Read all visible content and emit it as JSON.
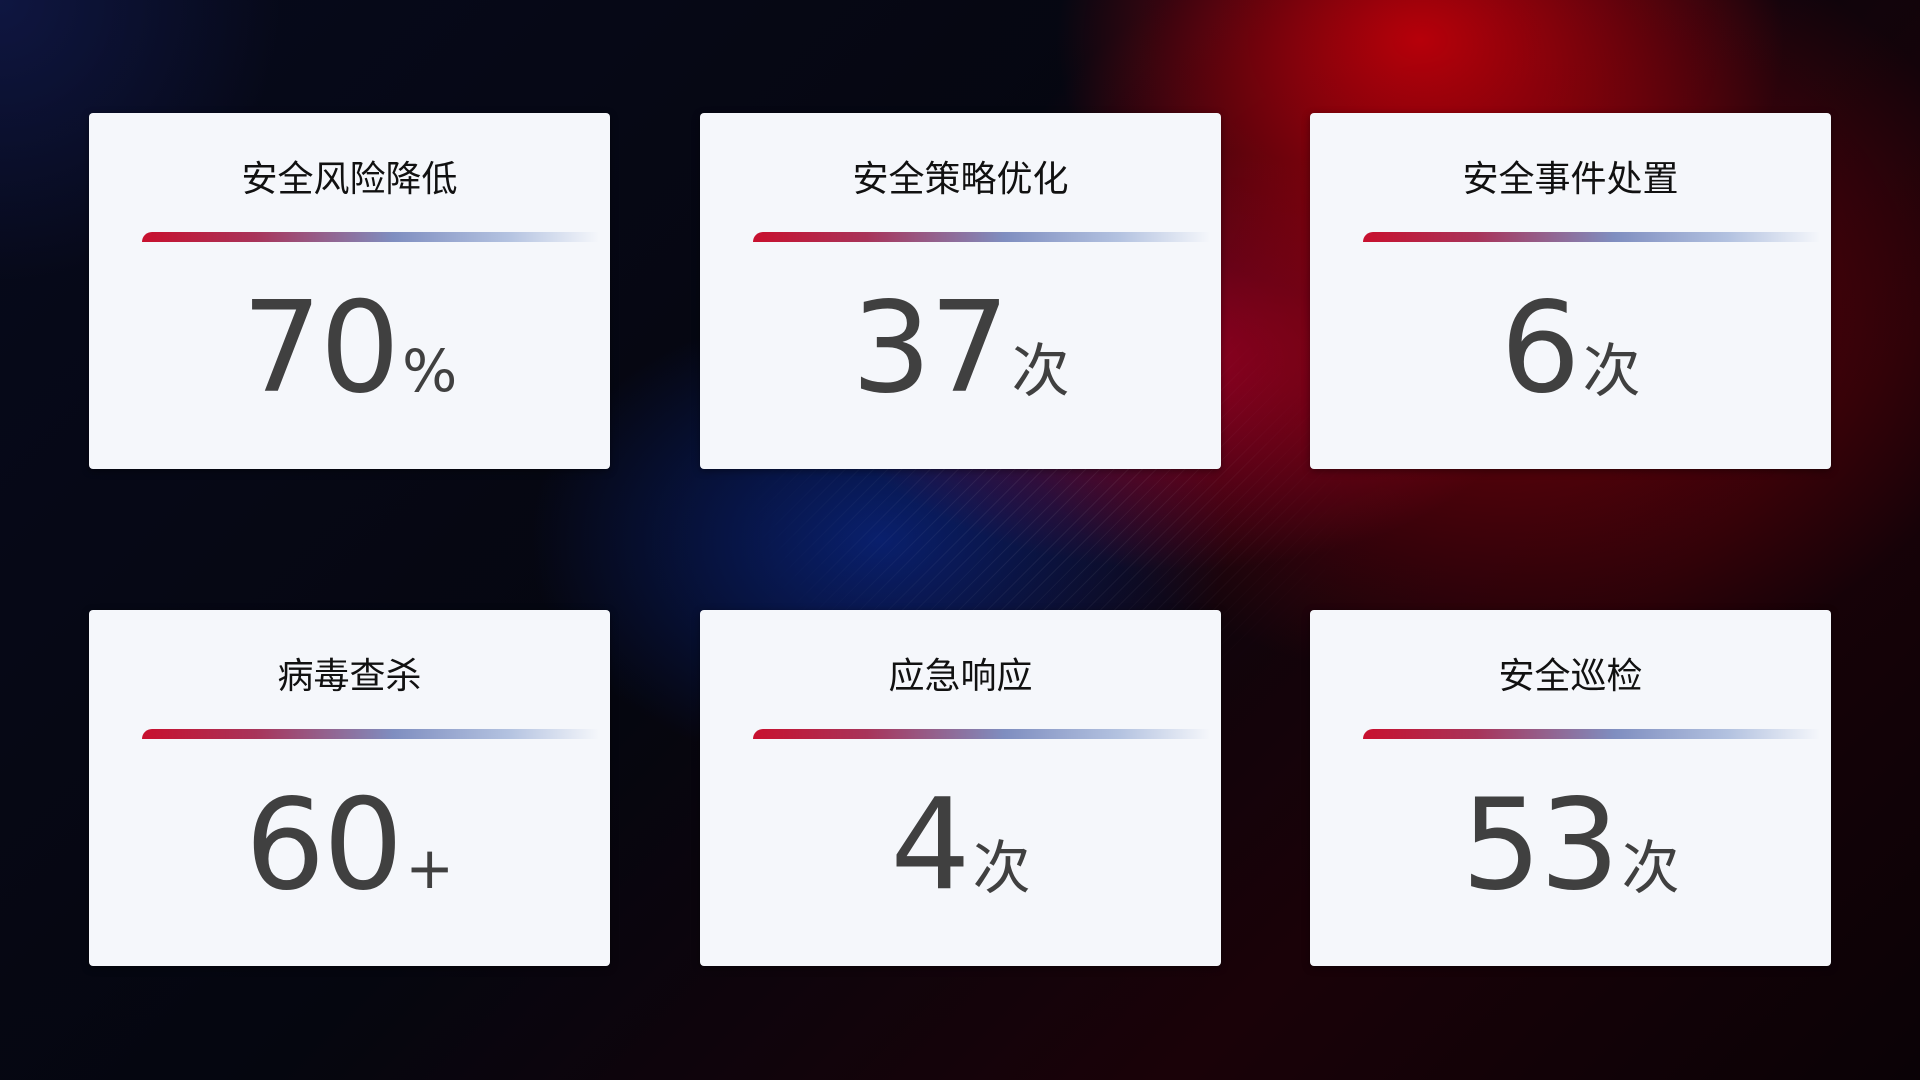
{
  "cards": [
    {
      "title": "安全风险降低",
      "value": "70",
      "unit": "%"
    },
    {
      "title": "安全策略优化",
      "value": "37",
      "unit": "次"
    },
    {
      "title": "安全事件处置",
      "value": "6",
      "unit": "次"
    },
    {
      "title": "病毒查杀",
      "value": "60",
      "unit": "+"
    },
    {
      "title": "应急响应",
      "value": "4",
      "unit": "次"
    },
    {
      "title": "安全巡检",
      "value": "53",
      "unit": "次"
    }
  ],
  "colors": {
    "accent_red": "#c8102e",
    "accent_blue": "#7f8ec0",
    "card_bg": "#f5f7fb",
    "value_text": "#404040"
  }
}
